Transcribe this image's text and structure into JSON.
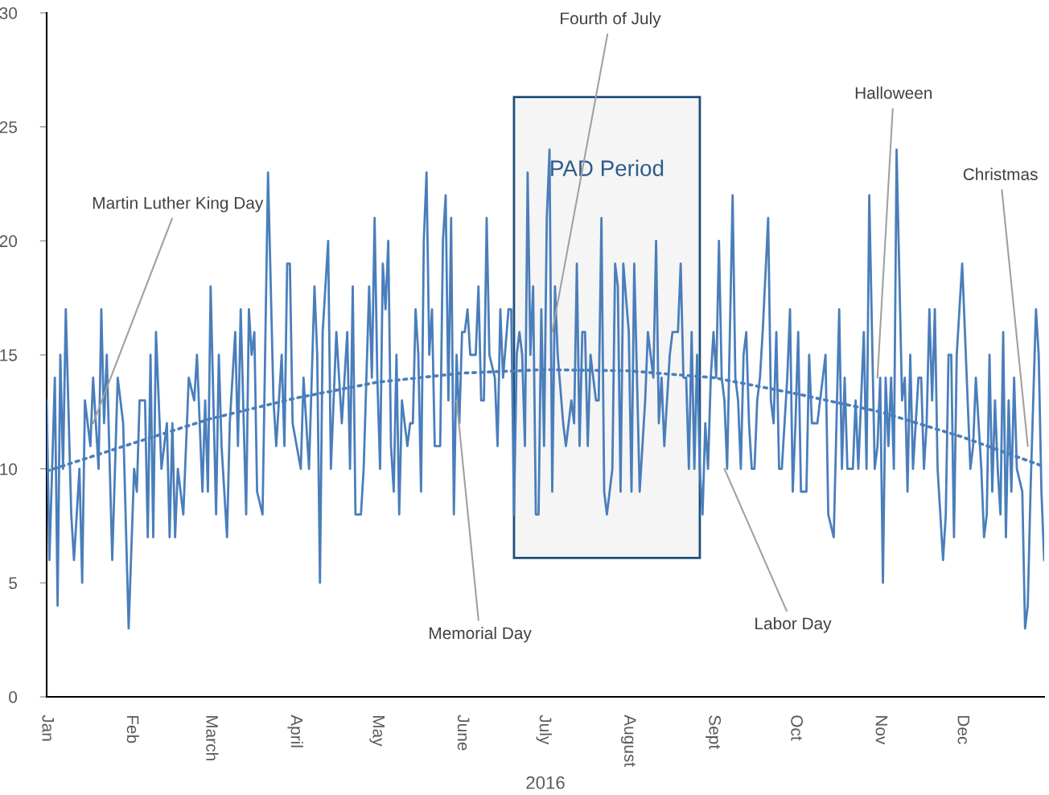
{
  "chart_data": {
    "type": "line",
    "xlabel": "2016",
    "xlim": [
      "2016-01-01",
      "2016-12-31"
    ],
    "xticks": [
      {
        "value": "2016-01-01",
        "label": "Jan"
      },
      {
        "value": "2016-02-01",
        "label": "Feb"
      },
      {
        "value": "2016-03-01",
        "label": "March"
      },
      {
        "value": "2016-04-01",
        "label": "April"
      },
      {
        "value": "2016-05-01",
        "label": "May"
      },
      {
        "value": "2016-06-01",
        "label": "June"
      },
      {
        "value": "2016-07-01",
        "label": "July"
      },
      {
        "value": "2016-08-01",
        "label": "August"
      },
      {
        "value": "2016-09-01",
        "label": "Sept"
      },
      {
        "value": "2016-10-01",
        "label": "Oct"
      },
      {
        "value": "2016-11-01",
        "label": "Nov"
      },
      {
        "value": "2016-12-01",
        "label": "Dec"
      }
    ],
    "ylim": [
      0,
      30
    ],
    "yticks": [
      0,
      5,
      10,
      15,
      20,
      25,
      30
    ],
    "grid": false,
    "legend": false,
    "marker": "none",
    "series": [
      {
        "color": "#4a7ebb",
        "line_style": "solid",
        "x": [
          "2016-01-01",
          "2016-01-02",
          "2016-01-04",
          "2016-01-05",
          "2016-01-06",
          "2016-01-07",
          "2016-01-08",
          "2016-01-10",
          "2016-01-11",
          "2016-01-13",
          "2016-01-14",
          "2016-01-15",
          "2016-01-17",
          "2016-01-18",
          "2016-01-20",
          "2016-01-21",
          "2016-01-22",
          "2016-01-23",
          "2016-01-25",
          "2016-01-27",
          "2016-01-29",
          "2016-01-31",
          "2016-02-02",
          "2016-02-03",
          "2016-02-04",
          "2016-02-06",
          "2016-02-07",
          "2016-02-08",
          "2016-02-09",
          "2016-02-10",
          "2016-02-12",
          "2016-02-14",
          "2016-02-15",
          "2016-02-16",
          "2016-02-17",
          "2016-02-18",
          "2016-02-20",
          "2016-02-22",
          "2016-02-24",
          "2016-02-25",
          "2016-02-27",
          "2016-02-28",
          "2016-02-29",
          "2016-03-01",
          "2016-03-03",
          "2016-03-04",
          "2016-03-05",
          "2016-03-07",
          "2016-03-08",
          "2016-03-10",
          "2016-03-11",
          "2016-03-12",
          "2016-03-14",
          "2016-03-15",
          "2016-03-16",
          "2016-03-17",
          "2016-03-18",
          "2016-03-20",
          "2016-03-22",
          "2016-03-24",
          "2016-03-25",
          "2016-03-27",
          "2016-03-28",
          "2016-03-29",
          "2016-03-30",
          "2016-03-31",
          "2016-04-03",
          "2016-04-04",
          "2016-04-06",
          "2016-04-08",
          "2016-04-09",
          "2016-04-10",
          "2016-04-11",
          "2016-04-13",
          "2016-04-14",
          "2016-04-16",
          "2016-04-18",
          "2016-04-20",
          "2016-04-21",
          "2016-04-22",
          "2016-04-23",
          "2016-04-25",
          "2016-04-26",
          "2016-04-28",
          "2016-04-29",
          "2016-04-30",
          "2016-05-01",
          "2016-05-02",
          "2016-05-03",
          "2016-05-04",
          "2016-05-05",
          "2016-05-06",
          "2016-05-07",
          "2016-05-08",
          "2016-05-09",
          "2016-05-10",
          "2016-05-12",
          "2016-05-13",
          "2016-05-14",
          "2016-05-15",
          "2016-05-16",
          "2016-05-17",
          "2016-05-18",
          "2016-05-19",
          "2016-05-20",
          "2016-05-21",
          "2016-05-22",
          "2016-05-24",
          "2016-05-25",
          "2016-05-26",
          "2016-05-27",
          "2016-05-28",
          "2016-05-29",
          "2016-05-30",
          "2016-05-31",
          "2016-06-01",
          "2016-06-02",
          "2016-06-03",
          "2016-06-04",
          "2016-06-06",
          "2016-06-07",
          "2016-06-08",
          "2016-06-09",
          "2016-06-10",
          "2016-06-11",
          "2016-06-13",
          "2016-06-14",
          "2016-06-15",
          "2016-06-16",
          "2016-06-18",
          "2016-06-19",
          "2016-06-20",
          "2016-06-21",
          "2016-06-22",
          "2016-06-23",
          "2016-06-24",
          "2016-06-25",
          "2016-06-26",
          "2016-06-27",
          "2016-06-28",
          "2016-06-29",
          "2016-06-30",
          "2016-07-01",
          "2016-07-02",
          "2016-07-03",
          "2016-07-04",
          "2016-07-05",
          "2016-07-06",
          "2016-07-08",
          "2016-07-09",
          "2016-07-11",
          "2016-07-12",
          "2016-07-13",
          "2016-07-14",
          "2016-07-15",
          "2016-07-16",
          "2016-07-17",
          "2016-07-18",
          "2016-07-20",
          "2016-07-21",
          "2016-07-22",
          "2016-07-23",
          "2016-07-24",
          "2016-07-25",
          "2016-07-26",
          "2016-07-27",
          "2016-07-28",
          "2016-07-29",
          "2016-07-30",
          "2016-08-01",
          "2016-08-02",
          "2016-08-03",
          "2016-08-05",
          "2016-08-06",
          "2016-08-07",
          "2016-08-08",
          "2016-08-09",
          "2016-08-10",
          "2016-08-11",
          "2016-08-12",
          "2016-08-13",
          "2016-08-14",
          "2016-08-16",
          "2016-08-17",
          "2016-08-19",
          "2016-08-20",
          "2016-08-21",
          "2016-08-22",
          "2016-08-23",
          "2016-08-24",
          "2016-08-25",
          "2016-08-26",
          "2016-08-27",
          "2016-08-28",
          "2016-08-29",
          "2016-08-30",
          "2016-08-31",
          "2016-09-01",
          "2016-09-02",
          "2016-09-03",
          "2016-09-04",
          "2016-09-05",
          "2016-09-06",
          "2016-09-07",
          "2016-09-08",
          "2016-09-09",
          "2016-09-10",
          "2016-09-11",
          "2016-09-12",
          "2016-09-13",
          "2016-09-14",
          "2016-09-15",
          "2016-09-16",
          "2016-09-17",
          "2016-09-18",
          "2016-09-19",
          "2016-09-21",
          "2016-09-22",
          "2016-09-23",
          "2016-09-24",
          "2016-09-25",
          "2016-09-26",
          "2016-09-27",
          "2016-09-28",
          "2016-09-29",
          "2016-09-30",
          "2016-10-01",
          "2016-10-02",
          "2016-10-03",
          "2016-10-05",
          "2016-10-06",
          "2016-10-07",
          "2016-10-09",
          "2016-10-11",
          "2016-10-12",
          "2016-10-13",
          "2016-10-15",
          "2016-10-17",
          "2016-10-18",
          "2016-10-19",
          "2016-10-20",
          "2016-10-22",
          "2016-10-23",
          "2016-10-24",
          "2016-10-26",
          "2016-10-27",
          "2016-10-28",
          "2016-10-30",
          "2016-10-31",
          "2016-11-01",
          "2016-11-02",
          "2016-11-03",
          "2016-11-04",
          "2016-11-05",
          "2016-11-06",
          "2016-11-07",
          "2016-11-09",
          "2016-11-10",
          "2016-11-11",
          "2016-11-12",
          "2016-11-13",
          "2016-11-15",
          "2016-11-16",
          "2016-11-17",
          "2016-11-18",
          "2016-11-19",
          "2016-11-20",
          "2016-11-21",
          "2016-11-22",
          "2016-11-24",
          "2016-11-25",
          "2016-11-26",
          "2016-11-27",
          "2016-11-28",
          "2016-11-29",
          "2016-11-30",
          "2016-12-01",
          "2016-12-03",
          "2016-12-04",
          "2016-12-05",
          "2016-12-06",
          "2016-12-08",
          "2016-12-09",
          "2016-12-10",
          "2016-12-11",
          "2016-12-12",
          "2016-12-13",
          "2016-12-14",
          "2016-12-15",
          "2016-12-16",
          "2016-12-17",
          "2016-12-18",
          "2016-12-19",
          "2016-12-20",
          "2016-12-21",
          "2016-12-23",
          "2016-12-24",
          "2016-12-25",
          "2016-12-26",
          "2016-12-28",
          "2016-12-29",
          "2016-12-30",
          "2016-12-31"
        ],
        "values": [
          13,
          6,
          14,
          4,
          15,
          10,
          17,
          8,
          6,
          10,
          5,
          13,
          11,
          14,
          10,
          17,
          12,
          15,
          6,
          14,
          12,
          3,
          10,
          9,
          13,
          13,
          7,
          15,
          7,
          16,
          10,
          12,
          7,
          12,
          7,
          10,
          8,
          14,
          13,
          15,
          9,
          13,
          9,
          18,
          8,
          15,
          11,
          7,
          12,
          16,
          11,
          17,
          8,
          17,
          15,
          16,
          9,
          8,
          23,
          13,
          11,
          15,
          11,
          19,
          19,
          12,
          10,
          14,
          10,
          18,
          15,
          5,
          16,
          20,
          10,
          16,
          12,
          16,
          10,
          18,
          8,
          8,
          10,
          18,
          14,
          21,
          14,
          10,
          19,
          17,
          20,
          11,
          9,
          15,
          8,
          13,
          11,
          12,
          12,
          17,
          15,
          9,
          20,
          23,
          15,
          17,
          11,
          11,
          20,
          22,
          13,
          21,
          8,
          15,
          12,
          16,
          16,
          17,
          15,
          15,
          18,
          13,
          13,
          21,
          15,
          14,
          11,
          17,
          14,
          17,
          17,
          8,
          15,
          16,
          15,
          11,
          23,
          15,
          18,
          8,
          8,
          17,
          11,
          21,
          24,
          9,
          18,
          15,
          12,
          11,
          13,
          12,
          19,
          11,
          16,
          16,
          11,
          15,
          13,
          13,
          21,
          9,
          8,
          9,
          10,
          19,
          18,
          9,
          19,
          16,
          9,
          19,
          9,
          11,
          13,
          16,
          15,
          14,
          20,
          12,
          14,
          11,
          15,
          16,
          16,
          19,
          14,
          14,
          10,
          16,
          10,
          15,
          10,
          8,
          12,
          10,
          14,
          16,
          14,
          20,
          14,
          13,
          10,
          16,
          22,
          14,
          13,
          10,
          15,
          16,
          12,
          10,
          10,
          13,
          14,
          16,
          21,
          13,
          12,
          16,
          10,
          10,
          12,
          14,
          17,
          9,
          12,
          16,
          9,
          9,
          15,
          12,
          12,
          14,
          15,
          8,
          7,
          17,
          10,
          14,
          10,
          10,
          13,
          10,
          16,
          10,
          22,
          10,
          11,
          14,
          5,
          14,
          11,
          14,
          10,
          24,
          13,
          14,
          9,
          15,
          10,
          14,
          14,
          10,
          12,
          17,
          13,
          17,
          10,
          6,
          8,
          15,
          15,
          7,
          15,
          17,
          19,
          13,
          10,
          11,
          14,
          10,
          7,
          8,
          15,
          9,
          13,
          10,
          8,
          16,
          7,
          13,
          9,
          14,
          10,
          9,
          3,
          4,
          9,
          17,
          15,
          9,
          6
        ]
      },
      {
        "color": "#4a7ebb",
        "line_style": "dotted",
        "x": [
          "2016-01-01",
          "2016-02-01",
          "2016-03-01",
          "2016-04-01",
          "2016-05-01",
          "2016-06-01",
          "2016-07-01",
          "2016-08-01",
          "2016-09-01",
          "2016-10-01",
          "2016-11-01",
          "2016-12-01",
          "2016-12-31"
        ],
        "values": [
          9.9,
          11.1,
          12.2,
          13.1,
          13.8,
          14.2,
          14.35,
          14.3,
          14.0,
          13.3,
          12.5,
          11.4,
          10.1
        ]
      }
    ],
    "bands": [
      {
        "axis": "x",
        "from": "2016-06-20",
        "to": "2016-08-27",
        "label": "PAD Period",
        "color": "#f5f5f5"
      }
    ],
    "annotations": [
      {
        "text": "Martin Luther King Day",
        "x": "2016-01-18",
        "y": 12
      },
      {
        "text": "Memorial Day",
        "x": "2016-05-30",
        "y": 13
      },
      {
        "text": "Fourth of July",
        "x": "2016-07-04",
        "y": 16
      },
      {
        "text": "Labor Day",
        "x": "2016-09-05",
        "y": 10
      },
      {
        "text": "Halloween",
        "x": "2016-10-31",
        "y": 14
      },
      {
        "text": "Christmas",
        "x": "2016-12-25",
        "y": 11
      }
    ]
  }
}
